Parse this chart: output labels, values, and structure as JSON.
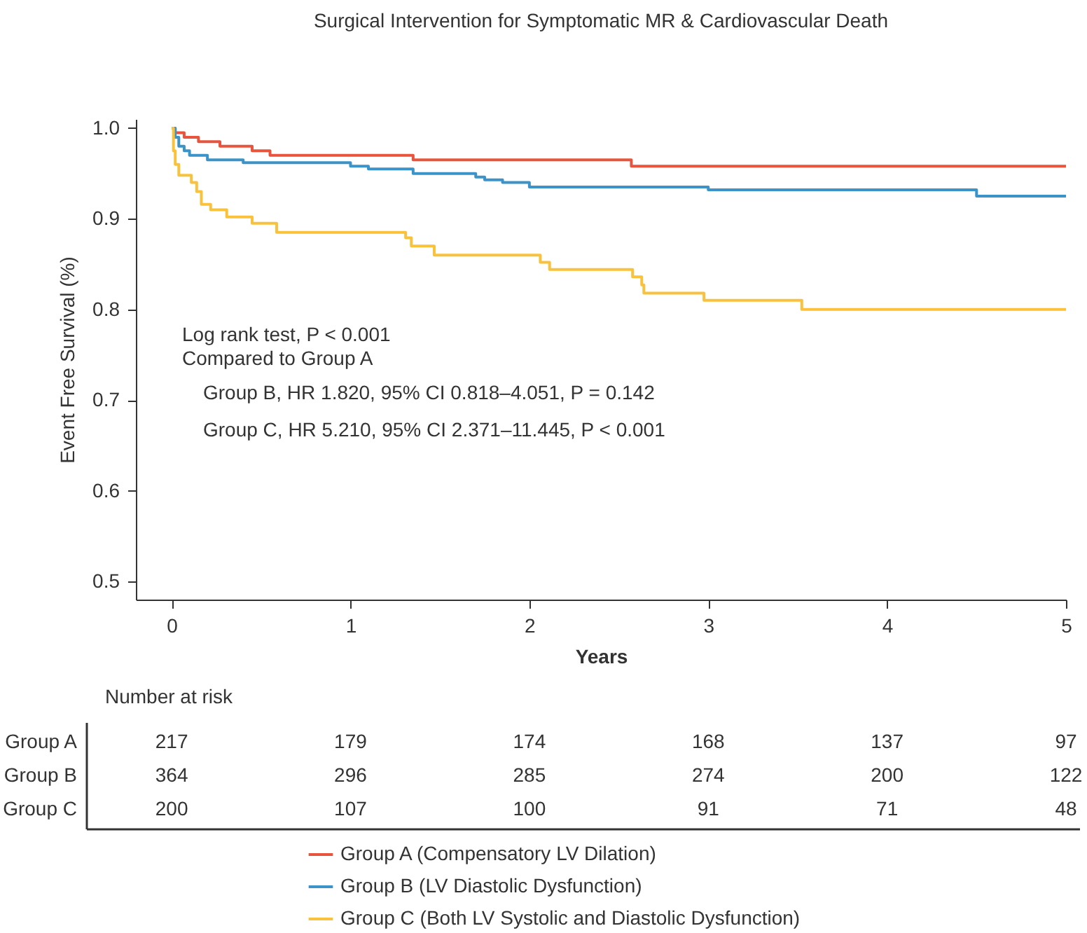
{
  "chart_data": {
    "type": "step",
    "title": "Surgical Intervention for Symptomatic MR & Cardiovascular Death",
    "xlabel": "Years",
    "ylabel": "Event Free Survival (%)",
    "xlim": [
      -0.2,
      5
    ],
    "xticks": [
      0,
      1,
      2,
      3,
      4,
      5
    ],
    "ylim": [
      0.48,
      1.01
    ],
    "yticks": [
      0.5,
      0.6,
      0.7,
      0.8,
      0.9,
      {
        "value": 1,
        "label": "1.0"
      }
    ],
    "grid": false,
    "legend": "bottom",
    "line_style": "solid",
    "series": [
      {
        "name": "Group A  (Compensatory LV Dilation)",
        "color": "#e8553e",
        "x": [
          0,
          0.02,
          0.07,
          0.15,
          0.27,
          0.45,
          0.55,
          1.35,
          2.57,
          5
        ],
        "values": [
          1,
          0.995,
          0.99,
          0.985,
          0.98,
          0.975,
          0.97,
          0.965,
          0.958,
          0.958
        ]
      },
      {
        "name": "Group B  (LV Diastolic Dysfunction)",
        "color": "#3c93c8",
        "x": [
          0,
          0.02,
          0.04,
          0.07,
          0.1,
          0.2,
          0.4,
          1,
          1.1,
          1.35,
          1.7,
          1.75,
          1.85,
          2,
          3,
          4.5,
          5
        ],
        "values": [
          1,
          0.99,
          0.98,
          0.975,
          0.97,
          0.965,
          0.962,
          0.958,
          0.955,
          0.95,
          0.946,
          0.943,
          0.94,
          0.935,
          0.932,
          0.925,
          0.925
        ]
      },
      {
        "name": "Group C  (Both LV Systolic and Diastolic Dysfunction)",
        "color": "#f9c23c",
        "x": [
          0,
          0.01,
          0.02,
          0.04,
          0.11,
          0.14,
          0.166,
          0.218,
          0.308,
          0.45,
          0.587,
          1.308,
          1.34,
          1.468,
          2.061,
          2.113,
          2.577,
          2.628,
          2.64,
          2.976,
          3.523,
          5
        ],
        "values": [
          1,
          0.975,
          0.96,
          0.948,
          0.94,
          0.93,
          0.916,
          0.91,
          0.902,
          0.895,
          0.885,
          0.879,
          0.87,
          0.86,
          0.852,
          0.844,
          0.836,
          0.827,
          0.818,
          0.81,
          0.8,
          0.8
        ]
      }
    ],
    "annotations": [
      "Log rank test, P < 0.001",
      "Compared to Group A",
      "Group B, HR 1.820, 95% CI 0.818–4.051, P = 0.142",
      "Group C, HR 5.210, 95% CI 2.371–11.445, P < 0.001",
      "Number at risk",
      "Group A",
      "217",
      "179",
      "174",
      "168",
      "137",
      "97",
      "Group B",
      "364",
      "296",
      "285",
      "274",
      "200",
      "122",
      "Group C",
      "200",
      "107",
      "100",
      "91",
      "71",
      "48"
    ]
  }
}
